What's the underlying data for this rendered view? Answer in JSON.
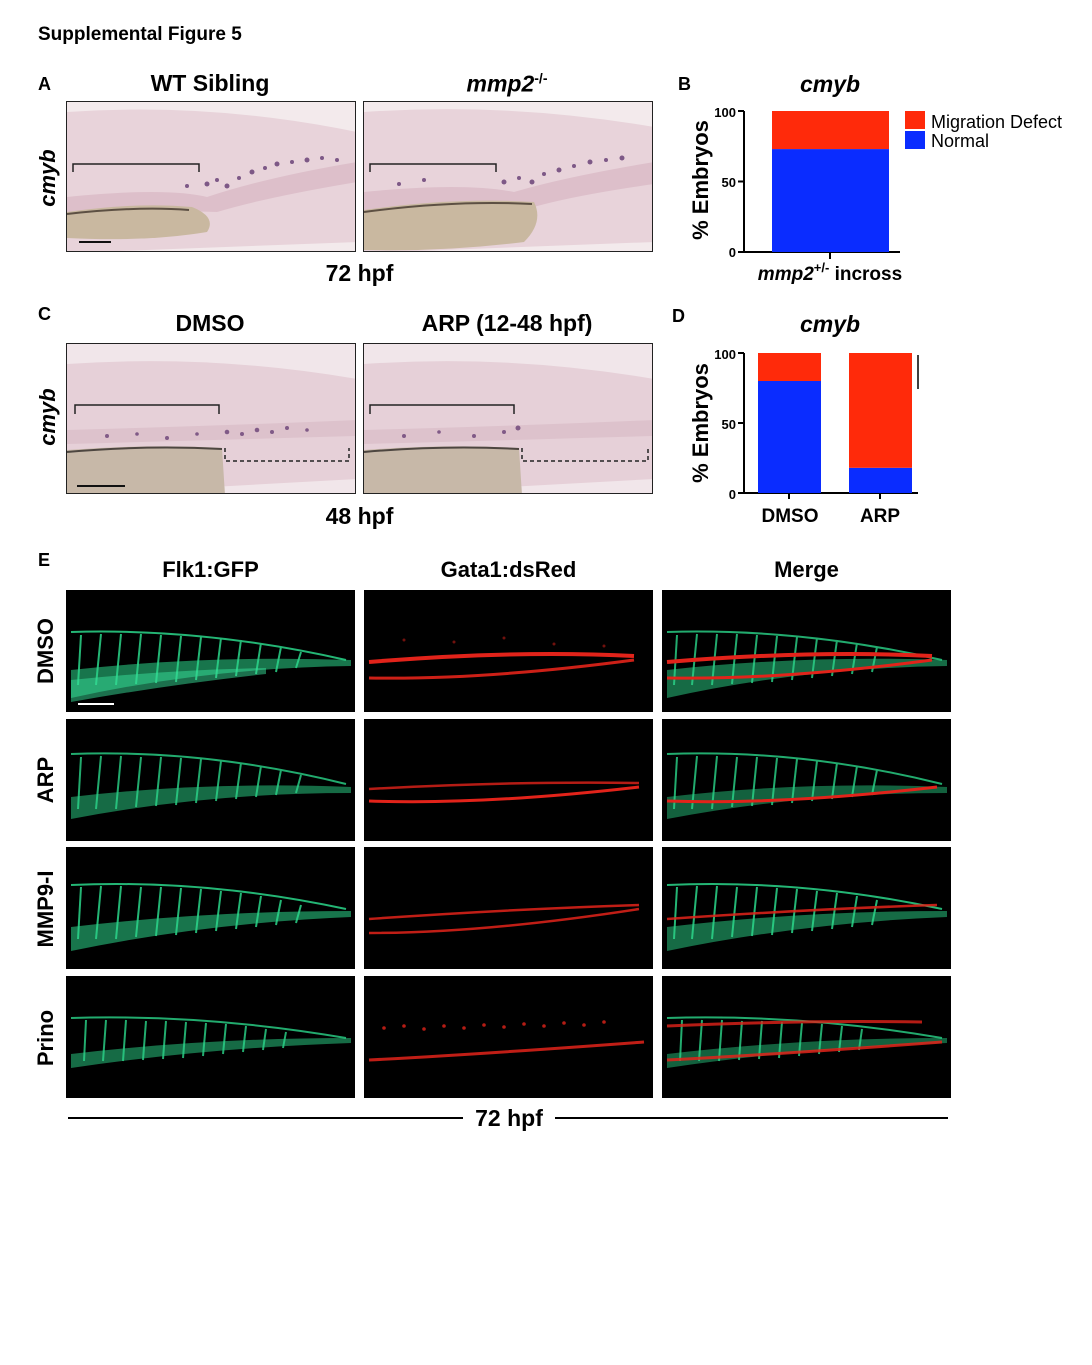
{
  "figure_title": "Supplemental Figure 5",
  "panels": {
    "A": {
      "letter": "A",
      "col1_title": "WT Sibling",
      "col2_title_gene": "mmp2",
      "col2_title_sup": "-/-",
      "row_label": "cmyb",
      "time_label": "72 hpf"
    },
    "C": {
      "letter": "C",
      "col1_title": "DMSO",
      "col2_title": "ARP (12-48 hpf)",
      "row_label": "cmyb",
      "time_label": "48 hpf"
    },
    "E": {
      "letter": "E",
      "columns": [
        "Flk1:GFP",
        "Gata1:dsRed",
        "Merge"
      ],
      "rows": [
        "DMSO",
        "ARP",
        "MMP9-I",
        "Prino"
      ],
      "time_label": "72 hpf"
    }
  },
  "chart_data": [
    {
      "panel": "B",
      "letter": "B",
      "type": "bar",
      "stacked": true,
      "title": "cmyb",
      "ylabel": "% Embryos",
      "ylim": [
        0,
        100
      ],
      "yticks": [
        "0",
        "50",
        "100"
      ],
      "categories": [
        "mmp2+/- incross"
      ],
      "category_display": {
        "gene": "mmp2",
        "sup": "+/-",
        "rest": " incross"
      },
      "series": [
        {
          "name": "Normal",
          "color": "#0a2cff",
          "values": [
            73
          ]
        },
        {
          "name": "Migration Defect",
          "color": "#ff2a0a",
          "values": [
            27
          ]
        }
      ],
      "legend": [
        "Migration Defect",
        "Normal"
      ],
      "legend_position": "right"
    },
    {
      "panel": "D",
      "letter": "D",
      "type": "bar",
      "stacked": true,
      "title": "cmyb",
      "ylabel": "% Embryos",
      "ylim": [
        0,
        100
      ],
      "yticks": [
        "0",
        "50",
        "100"
      ],
      "categories": [
        "DMSO",
        "ARP"
      ],
      "series": [
        {
          "name": "Normal",
          "color": "#0a2cff",
          "values": [
            80,
            18
          ]
        },
        {
          "name": "Migration Defect",
          "color": "#ff2a0a",
          "values": [
            20,
            82
          ]
        }
      ]
    }
  ],
  "colors": {
    "normal": "#0a2cff",
    "defect": "#ff2a0a",
    "ish_background": "#eadbe0",
    "gfp": "#2bd68a",
    "dsred": "#e2231a"
  }
}
